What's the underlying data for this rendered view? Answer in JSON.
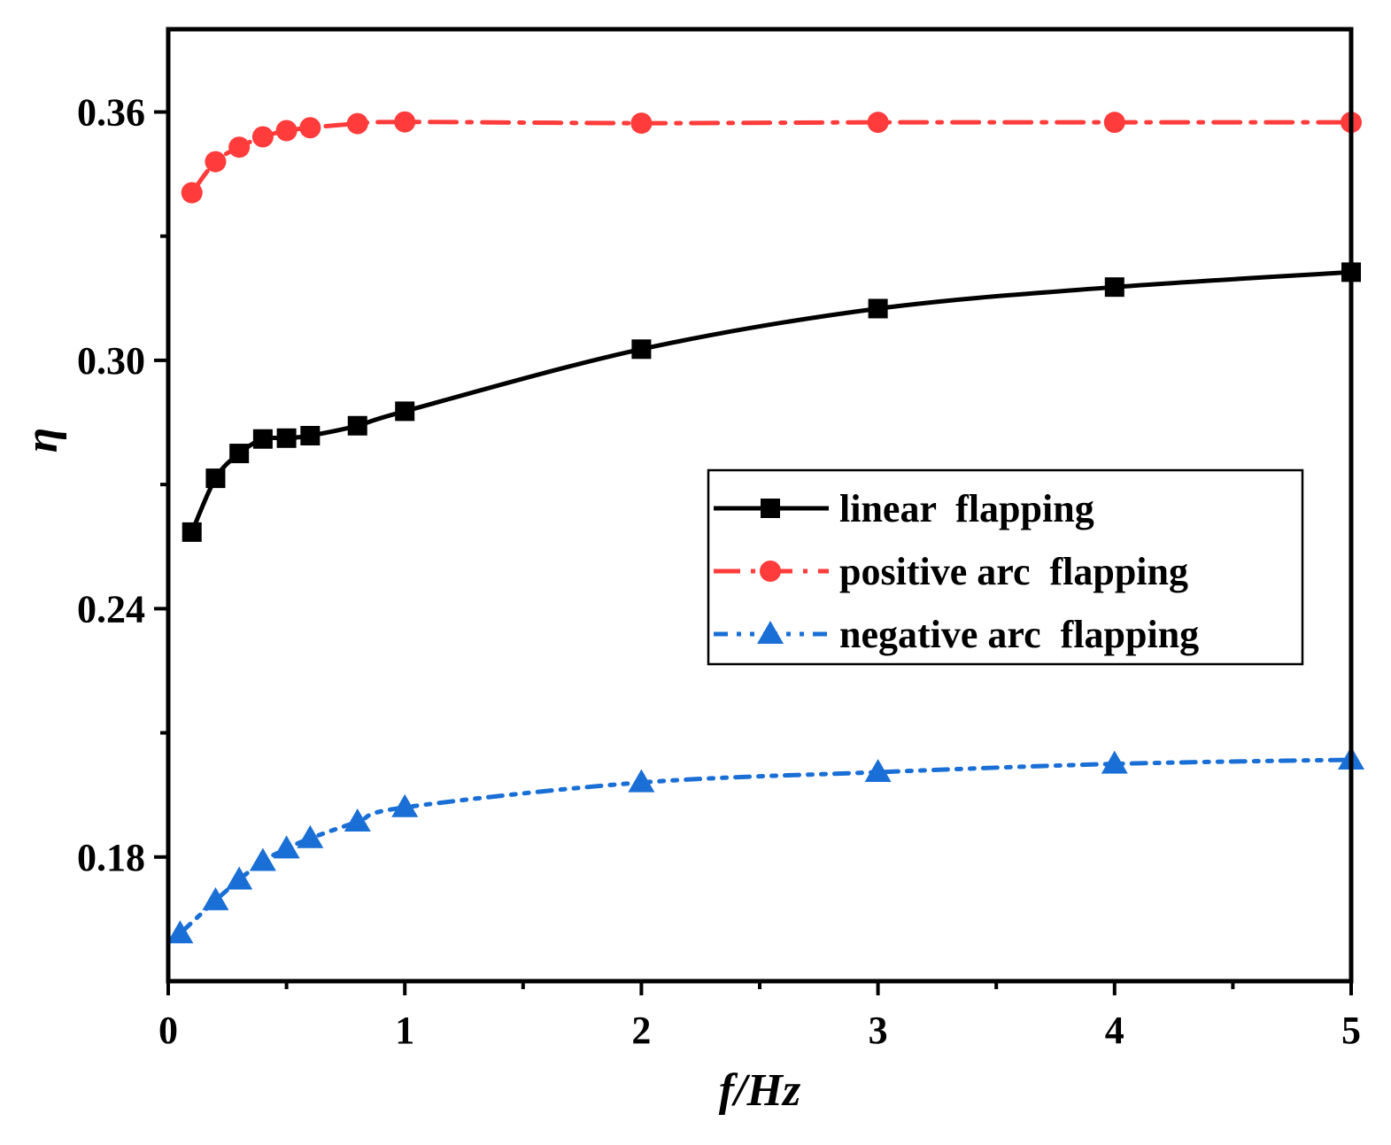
{
  "chart_data": {
    "type": "line",
    "title": "",
    "xlabel": "f/Hz",
    "ylabel": "η",
    "xlim": [
      0,
      5
    ],
    "ylim": [
      0.15,
      0.38
    ],
    "x_major_ticks": [
      0,
      1,
      2,
      3,
      4,
      5
    ],
    "x_tick_labels": [
      "0",
      "1",
      "2",
      "3",
      "4",
      "5"
    ],
    "x_minor_ticks": [
      0.5,
      1.5,
      2.5,
      3.5,
      4.5
    ],
    "y_major_ticks": [
      0.18,
      0.24,
      0.3,
      0.36
    ],
    "y_tick_labels": [
      "0.18",
      "0.24",
      "0.30",
      "0.36"
    ],
    "y_minor_ticks": [
      0.21,
      0.27,
      0.33
    ],
    "grid": false,
    "legend_position": "center-right",
    "series": [
      {
        "name": "linear  flapping",
        "color": "#000000",
        "marker": "square",
        "dash": "solid",
        "x": [
          0.1,
          0.2,
          0.3,
          0.4,
          0.5,
          0.6,
          0.8,
          1,
          2,
          3,
          4,
          5
        ],
        "values": [
          0.2585,
          0.2715,
          0.2775,
          0.281,
          0.2812,
          0.2818,
          0.2842,
          0.2877,
          0.3027,
          0.3125,
          0.3177,
          0.3213
        ]
      },
      {
        "name": "positive arc  flapping",
        "color": "#ff3b3b",
        "marker": "circle",
        "dash": "dashdot",
        "x": [
          0.1,
          0.2,
          0.3,
          0.4,
          0.5,
          0.6,
          0.8,
          1,
          2,
          3,
          4,
          5
        ],
        "values": [
          0.3405,
          0.348,
          0.3515,
          0.354,
          0.3555,
          0.3562,
          0.3572,
          0.3576,
          0.3573,
          0.3575,
          0.3575,
          0.3575
        ]
      },
      {
        "name": "negative arc  flapping",
        "color": "#1a6fd6",
        "marker": "triangle",
        "dash": "dashdotdot",
        "x": [
          0.05,
          0.2,
          0.3,
          0.4,
          0.5,
          0.6,
          0.8,
          1,
          2,
          3,
          4,
          5
        ],
        "values": [
          0.1615,
          0.1695,
          0.1745,
          0.179,
          0.182,
          0.1845,
          0.1885,
          0.192,
          0.198,
          0.2005,
          0.2025,
          0.2035
        ]
      }
    ]
  }
}
